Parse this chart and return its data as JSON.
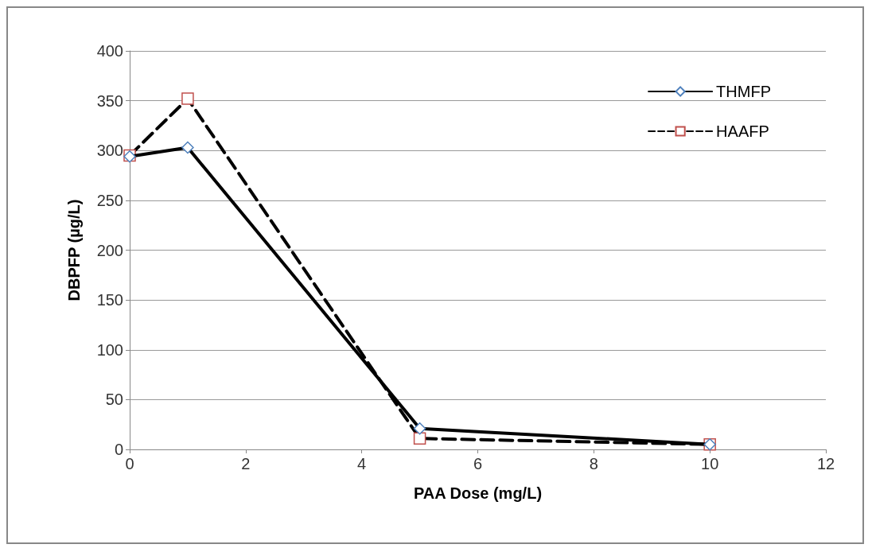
{
  "chart_data": {
    "type": "line",
    "xlabel": "PAA Dose (mg/L)",
    "ylabel": "DBPFP (µg/L)",
    "x": [
      0,
      1,
      5,
      10
    ],
    "series": [
      {
        "name": "THMFP",
        "color": "#000000",
        "colors": [
          "#4f81bd",
          "#4f81bd",
          "#4f81bd",
          "#4f81bd"
        ],
        "marker": "diamond",
        "line_style": "solid",
        "values": [
          294,
          303,
          21,
          5
        ]
      },
      {
        "name": "HAAFP",
        "color": "#000000",
        "colors": [
          "#c0504d",
          "#c0504d",
          "#c0504d",
          "#c0504d"
        ],
        "marker": "square",
        "line_style": "dashed",
        "values": [
          295,
          352,
          11,
          5
        ]
      }
    ],
    "xlim": [
      0,
      12
    ],
    "xticks": [
      0,
      2,
      4,
      6,
      8,
      10,
      12
    ],
    "ylim": [
      0,
      400
    ],
    "yticks": [
      0,
      50,
      100,
      150,
      200,
      250,
      300,
      350,
      400
    ],
    "grid": "y",
    "legend": "top right"
  }
}
